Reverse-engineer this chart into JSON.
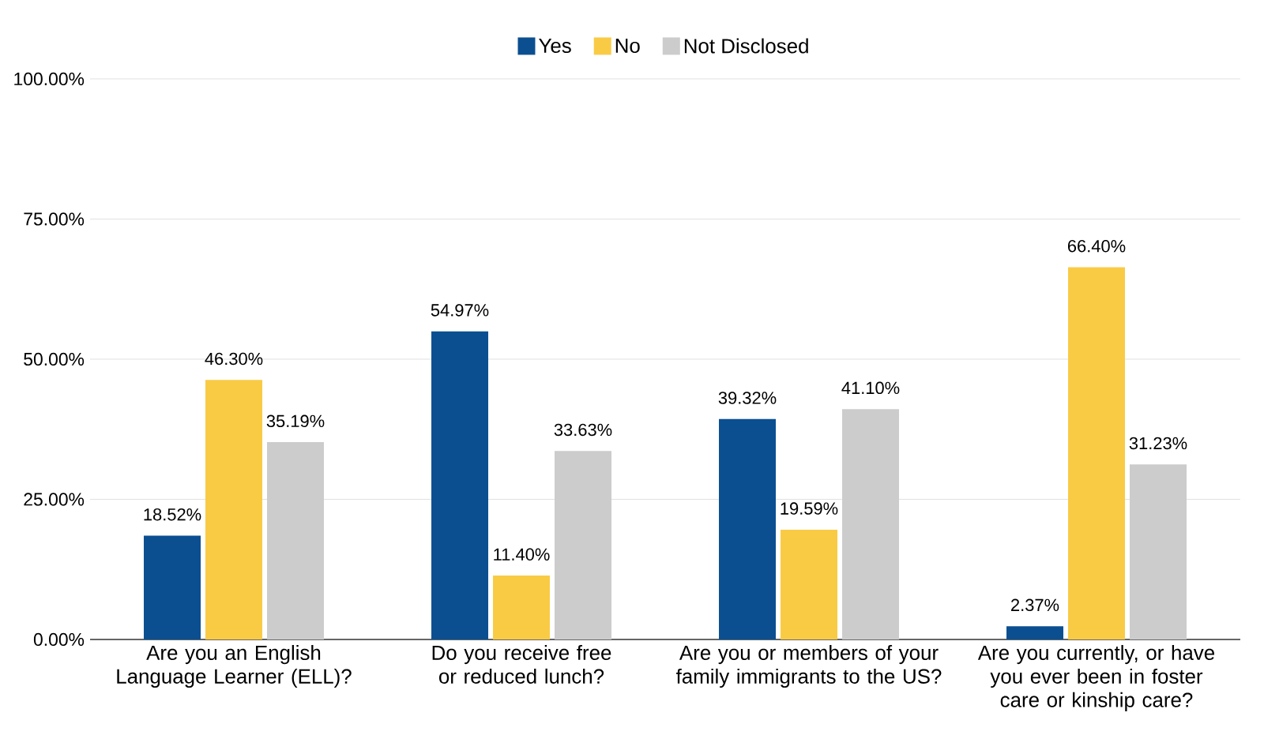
{
  "chart_data": {
    "type": "bar",
    "categories": [
      "Are you an English Language Learner (ELL)?",
      "Do you receive free or reduced lunch?",
      "Are you or members of your family immigrants to the US?",
      "Are you currently, or have you ever been in foster care or kinship care?"
    ],
    "series": [
      {
        "name": "Yes",
        "color": "#0b4f91",
        "values": [
          18.52,
          54.97,
          39.32,
          2.37
        ],
        "value_labels": [
          "18.52%",
          "54.97%",
          "39.32%",
          "2.37%"
        ]
      },
      {
        "name": "No",
        "color": "#f9cb45",
        "values": [
          46.3,
          11.4,
          19.59,
          66.4
        ],
        "value_labels": [
          "46.30%",
          "11.40%",
          "19.59%",
          "66.40%"
        ]
      },
      {
        "name": "Not Disclosed",
        "color": "#cccccc",
        "values": [
          35.19,
          33.63,
          41.1,
          31.23
        ],
        "value_labels": [
          "35.19%",
          "33.63%",
          "41.10%",
          "31.23%"
        ]
      }
    ],
    "ylim": [
      0,
      100
    ],
    "yticks": [
      {
        "value": 0,
        "label": "0.00%"
      },
      {
        "value": 25,
        "label": "25.00%"
      },
      {
        "value": 50,
        "label": "50.00%"
      },
      {
        "value": 75,
        "label": "75.00%"
      },
      {
        "value": 100,
        "label": "100.00%"
      }
    ],
    "grid": "y",
    "legend": "top"
  }
}
